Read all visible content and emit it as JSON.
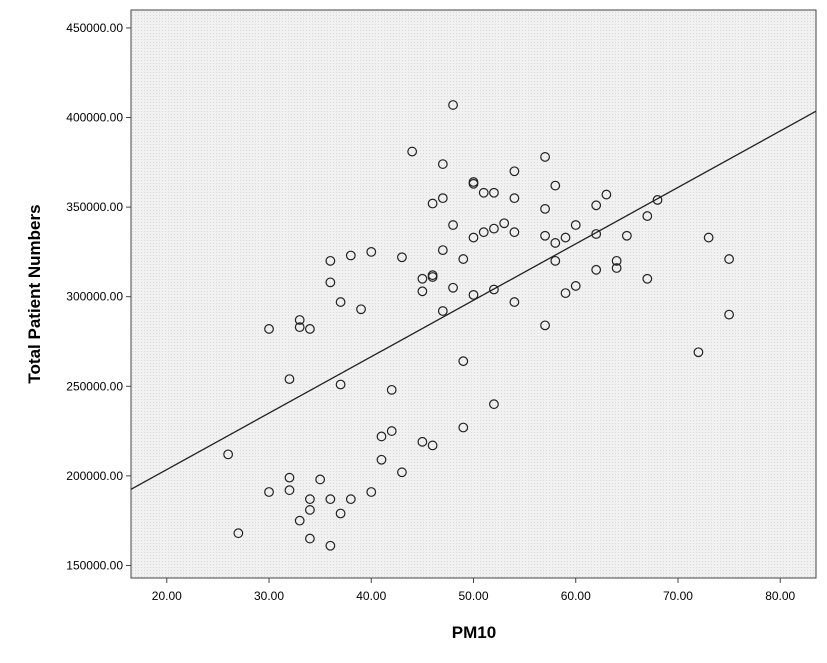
{
  "chart_data": {
    "type": "scatter",
    "xlabel": "PM10",
    "ylabel": "Total Patient Numbers",
    "xlim": [
      16.5,
      83.5
    ],
    "ylim": [
      143000,
      460000
    ],
    "x_ticks": [
      20,
      30,
      40,
      50,
      60,
      70,
      80
    ],
    "x_tick_labels": [
      "20.00",
      "30.00",
      "40.00",
      "50.00",
      "60.00",
      "70.00",
      "80.00"
    ],
    "y_ticks": [
      150000,
      200000,
      250000,
      300000,
      350000,
      400000,
      450000
    ],
    "y_tick_labels": [
      "150000.00",
      "200000.00",
      "250000.00",
      "300000.00",
      "350000.00",
      "400000.00",
      "450000.00"
    ],
    "fit_line": {
      "x": [
        16.5,
        83.5
      ],
      "y": [
        192500,
        403500
      ]
    },
    "grid": false,
    "points": [
      [
        26,
        212000
      ],
      [
        27,
        168000
      ],
      [
        30,
        191000
      ],
      [
        30,
        282000
      ],
      [
        32,
        199000
      ],
      [
        32,
        192000
      ],
      [
        32,
        254000
      ],
      [
        33,
        175000
      ],
      [
        33,
        287000
      ],
      [
        33,
        283000
      ],
      [
        34,
        165000
      ],
      [
        34,
        181000
      ],
      [
        34,
        187000
      ],
      [
        34,
        282000
      ],
      [
        35,
        198000
      ],
      [
        36,
        161000
      ],
      [
        36,
        187000
      ],
      [
        36,
        308000
      ],
      [
        36,
        320000
      ],
      [
        37,
        179000
      ],
      [
        37,
        251000
      ],
      [
        37,
        297000
      ],
      [
        38,
        187000
      ],
      [
        38,
        323000
      ],
      [
        39,
        293000
      ],
      [
        40,
        191000
      ],
      [
        40,
        325000
      ],
      [
        41,
        209000
      ],
      [
        41,
        222000
      ],
      [
        42,
        225000
      ],
      [
        42,
        248000
      ],
      [
        43,
        202000
      ],
      [
        43,
        322000
      ],
      [
        44,
        381000
      ],
      [
        45,
        219000
      ],
      [
        45,
        303000
      ],
      [
        45,
        310000
      ],
      [
        46,
        217000
      ],
      [
        46,
        311000
      ],
      [
        46,
        312000
      ],
      [
        46,
        352000
      ],
      [
        47,
        292000
      ],
      [
        47,
        326000
      ],
      [
        47,
        355000
      ],
      [
        47,
        374000
      ],
      [
        48,
        305000
      ],
      [
        48,
        340000
      ],
      [
        48,
        407000
      ],
      [
        49,
        227000
      ],
      [
        49,
        264000
      ],
      [
        49,
        321000
      ],
      [
        50,
        301000
      ],
      [
        50,
        333000
      ],
      [
        50,
        363000
      ],
      [
        50,
        364000
      ],
      [
        51,
        336000
      ],
      [
        51,
        358000
      ],
      [
        52,
        240000
      ],
      [
        52,
        304000
      ],
      [
        52,
        338000
      ],
      [
        52,
        358000
      ],
      [
        53,
        341000
      ],
      [
        54,
        297000
      ],
      [
        54,
        336000
      ],
      [
        54,
        355000
      ],
      [
        54,
        370000
      ],
      [
        57,
        284000
      ],
      [
        57,
        334000
      ],
      [
        57,
        349000
      ],
      [
        57,
        378000
      ],
      [
        58,
        320000
      ],
      [
        58,
        330000
      ],
      [
        58,
        362000
      ],
      [
        59,
        302000
      ],
      [
        59,
        333000
      ],
      [
        60,
        306000
      ],
      [
        60,
        340000
      ],
      [
        62,
        315000
      ],
      [
        62,
        335000
      ],
      [
        62,
        351000
      ],
      [
        63,
        357000
      ],
      [
        64,
        316000
      ],
      [
        64,
        320000
      ],
      [
        65,
        334000
      ],
      [
        67,
        310000
      ],
      [
        67,
        345000
      ],
      [
        68,
        354000
      ],
      [
        72,
        269000
      ],
      [
        73,
        333000
      ],
      [
        75,
        290000
      ],
      [
        75,
        321000
      ]
    ]
  }
}
